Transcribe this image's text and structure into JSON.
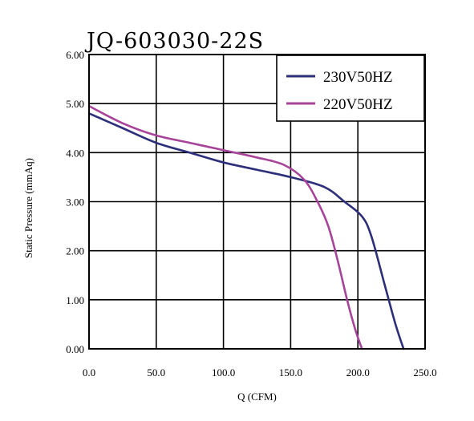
{
  "chart_data": {
    "type": "line",
    "title": "JQ-603030-22S",
    "xlabel": "Q (CFM)",
    "ylabel": "Static Pressure (mmAq)",
    "xlim": [
      0,
      250
    ],
    "ylim": [
      0,
      6
    ],
    "x_ticks": [
      "0.0",
      "50.0",
      "100.0",
      "150.0",
      "200.0",
      "250.0"
    ],
    "y_ticks": [
      "0.00",
      "1.00",
      "2.00",
      "3.00",
      "4.00",
      "5.00",
      "6.00"
    ],
    "grid": true,
    "legend_position": "top-right",
    "series": [
      {
        "name": "230V50HZ",
        "color": "#2e2f7a",
        "points": [
          [
            0,
            4.8
          ],
          [
            25,
            4.5
          ],
          [
            50,
            4.2
          ],
          [
            75,
            4.0
          ],
          [
            100,
            3.8
          ],
          [
            125,
            3.65
          ],
          [
            150,
            3.5
          ],
          [
            175,
            3.3
          ],
          [
            190,
            3.0
          ],
          [
            203,
            2.7
          ],
          [
            210,
            2.3
          ],
          [
            220,
            1.3
          ],
          [
            228,
            0.5
          ],
          [
            234,
            0.0
          ]
        ]
      },
      {
        "name": "220V50HZ",
        "color": "#a7449a",
        "points": [
          [
            0,
            4.95
          ],
          [
            25,
            4.6
          ],
          [
            50,
            4.35
          ],
          [
            75,
            4.2
          ],
          [
            100,
            4.05
          ],
          [
            125,
            3.9
          ],
          [
            145,
            3.75
          ],
          [
            160,
            3.45
          ],
          [
            170,
            3.0
          ],
          [
            178,
            2.5
          ],
          [
            185,
            1.8
          ],
          [
            192,
            1.0
          ],
          [
            198,
            0.4
          ],
          [
            203,
            0.0
          ]
        ]
      }
    ]
  }
}
